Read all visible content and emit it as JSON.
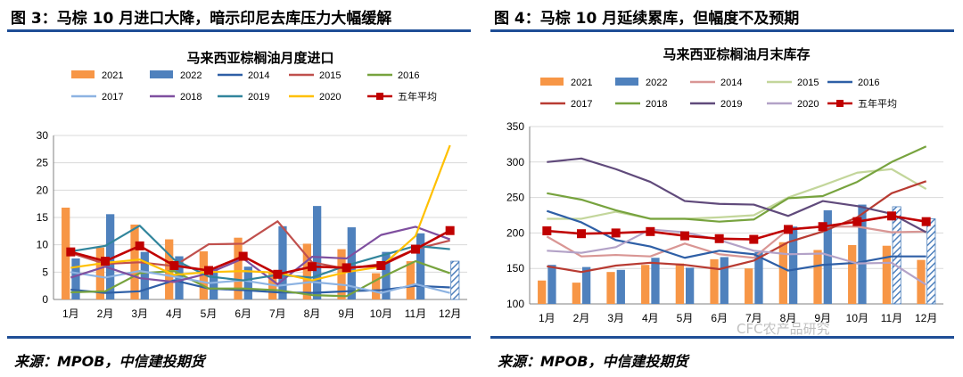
{
  "figures": {
    "left": {
      "title": "图 3：马棕 10 月进口大降，暗示印尼去库压力大幅缓解",
      "source": "来源：MPOB，中信建投期货"
    },
    "right": {
      "title": "图 4：马棕 10 月延续累库，但幅度不及预期",
      "source": "来源：MPOB，中信建投期货"
    }
  },
  "watermark": "CFC农产品研究",
  "chart_data": [
    {
      "type": "bar",
      "title": "马来西亚棕榈油月度进口",
      "categories": [
        "1月",
        "2月",
        "3月",
        "4月",
        "5月",
        "6月",
        "7月",
        "8月",
        "9月",
        "10月",
        "11月",
        "12月"
      ],
      "ylim": [
        0,
        30
      ],
      "yticks": [
        0,
        5,
        10,
        15,
        20,
        25,
        30
      ],
      "series": [
        {
          "name": "2021",
          "kind": "bar",
          "color": "#f79646",
          "values": [
            16.8,
            9.5,
            13.7,
            11.0,
            8.8,
            11.3,
            5.0,
            10.2,
            9.2,
            4.8,
            7.0,
            null
          ]
        },
        {
          "name": "2022",
          "kind": "bar",
          "color": "#4f81bd",
          "values": [
            7.5,
            15.6,
            8.7,
            7.9,
            5.8,
            6.0,
            13.4,
            17.1,
            13.2,
            8.7,
            12.1,
            null
          ]
        },
        {
          "name": "2014",
          "kind": "line",
          "color": "#2e5fa6",
          "values": [
            1.8,
            1.2,
            1.5,
            3.5,
            2.0,
            1.7,
            1.3,
            1.2,
            1.5,
            1.7,
            2.5,
            2.2
          ]
        },
        {
          "name": "2015",
          "kind": "line",
          "color": "#c0504d",
          "values": [
            8.5,
            6.5,
            6.8,
            6.1,
            10.1,
            10.2,
            14.3,
            6.8,
            5.6,
            6.5,
            9.2,
            10.8
          ]
        },
        {
          "name": "2016",
          "kind": "line",
          "color": "#77a33e",
          "values": [
            1.3,
            1.5,
            4.8,
            5.2,
            2.0,
            2.0,
            1.7,
            0.8,
            0.6,
            4.0,
            7.0,
            4.8
          ]
        },
        {
          "name": "2017",
          "kind": "line",
          "color": "#8db3e2",
          "values": [
            5.0,
            4.0,
            5.2,
            4.2,
            3.0,
            3.5,
            2.5,
            3.2,
            2.6,
            1.2,
            2.8,
            1.2
          ]
        },
        {
          "name": "2018",
          "kind": "line",
          "color": "#7f4f9f",
          "values": [
            4.0,
            6.0,
            3.9,
            3.2,
            4.8,
            7.5,
            2.8,
            7.8,
            7.5,
            11.8,
            13.3,
            11.0
          ]
        },
        {
          "name": "2019",
          "kind": "line",
          "color": "#31859c",
          "values": [
            8.8,
            9.8,
            13.5,
            7.3,
            4.2,
            3.5,
            4.5,
            4.0,
            6.2,
            8.0,
            9.8,
            9.2
          ]
        },
        {
          "name": "2020",
          "kind": "line",
          "color": "#ffc000",
          "values": [
            5.8,
            6.7,
            7.3,
            4.5,
            5.0,
            5.2,
            4.9,
            3.5,
            5.0,
            6.0,
            11.6,
            28.2
          ]
        },
        {
          "name": "五年平均",
          "kind": "avg",
          "color": "#c00000",
          "values": [
            8.7,
            7.0,
            9.8,
            6.2,
            5.3,
            7.9,
            4.6,
            6.0,
            5.8,
            6.2,
            9.2,
            12.6
          ]
        }
      ]
    },
    {
      "type": "bar",
      "title": "马来西亚棕榈油月末库存",
      "categories": [
        "1月",
        "2月",
        "3月",
        "4月",
        "5月",
        "6月",
        "7月",
        "8月",
        "9月",
        "10月",
        "11月",
        "12月"
      ],
      "ylim": [
        100,
        350
      ],
      "yticks": [
        100,
        150,
        200,
        250,
        300,
        350
      ],
      "series": [
        {
          "name": "2021",
          "kind": "bar",
          "color": "#f79646",
          "values": [
            133,
            130,
            145,
            155,
            157,
            163,
            150,
            187,
            176,
            183,
            182,
            162
          ]
        },
        {
          "name": "2022",
          "kind": "bar",
          "color": "#4f81bd",
          "values": [
            155,
            152,
            148,
            165,
            151,
            166,
            173,
            209,
            232,
            240,
            null,
            null
          ]
        },
        {
          "name": "2014",
          "kind": "line",
          "color": "#d99694",
          "values": [
            195,
            167,
            169,
            167,
            185,
            170,
            165,
            205,
            209,
            209,
            201,
            202
          ]
        },
        {
          "name": "2015",
          "kind": "line",
          "color": "#c3d69b",
          "values": [
            220,
            220,
            230,
            220,
            220,
            222,
            225,
            250,
            267,
            285,
            290,
            262
          ]
        },
        {
          "name": "2016",
          "kind": "line",
          "color": "#2e5fa6",
          "values": [
            231,
            215,
            190,
            181,
            165,
            175,
            170,
            147,
            155,
            158,
            167,
            167
          ]
        },
        {
          "name": "2017",
          "kind": "line",
          "color": "#b83b32",
          "values": [
            153,
            145,
            154,
            158,
            155,
            149,
            161,
            187,
            202,
            222,
            256,
            273
          ]
        },
        {
          "name": "2018",
          "kind": "line",
          "color": "#77a33e",
          "values": [
            256,
            247,
            232,
            220,
            220,
            216,
            219,
            249,
            252,
            272,
            300,
            322
          ]
        },
        {
          "name": "2019",
          "kind": "line",
          "color": "#604a7b",
          "values": [
            300,
            305,
            290,
            272,
            245,
            241,
            240,
            224,
            245,
            238,
            227,
            201
          ]
        },
        {
          "name": "2020",
          "kind": "line",
          "color": "#b3a2c7",
          "values": [
            175,
            172,
            180,
            205,
            201,
            190,
            175,
            170,
            171,
            157,
            158,
            127
          ]
        },
        {
          "name": "五年平均",
          "kind": "avg",
          "color": "#c00000",
          "values": [
            203,
            199,
            200,
            202,
            196,
            192,
            191,
            205,
            209,
            216,
            224,
            216
          ]
        }
      ]
    }
  ]
}
